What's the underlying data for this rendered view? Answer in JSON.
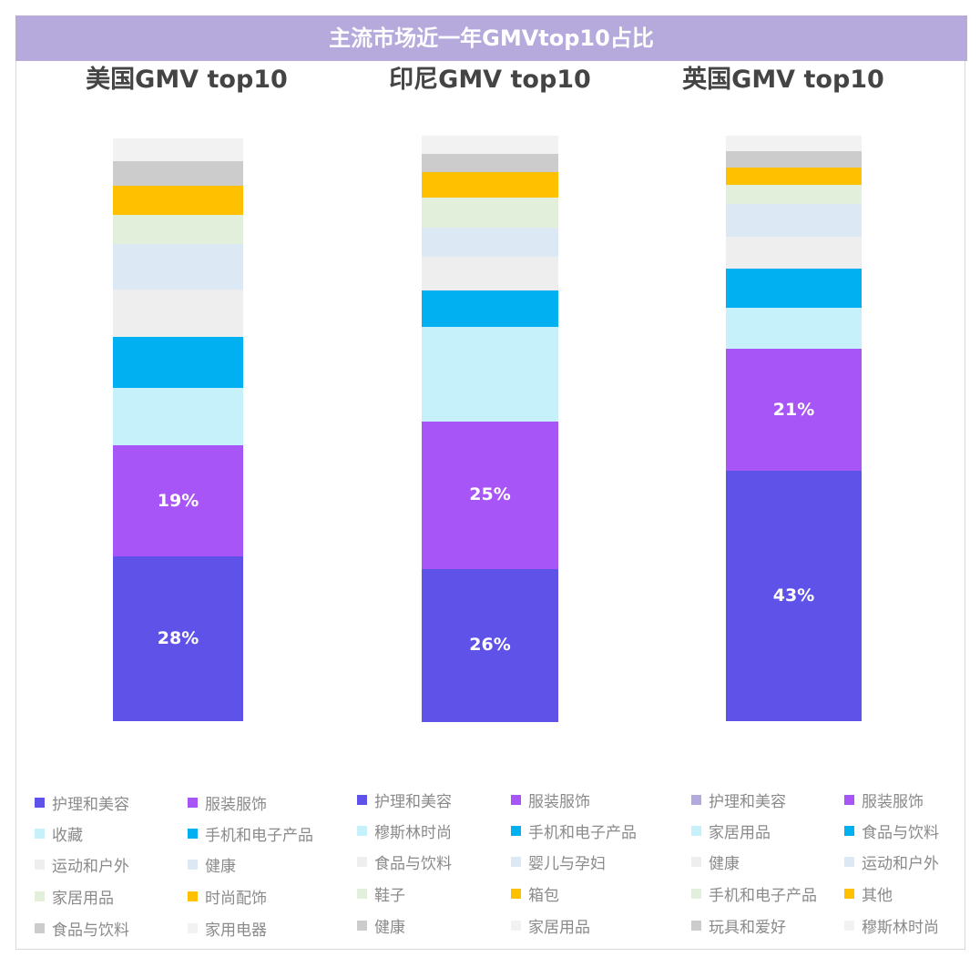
{
  "title": "主流市场近一年GMVtop10占比",
  "chart_data": [
    {
      "type": "stacked-bar",
      "title": "美国GMV top10",
      "unit": "%",
      "series": [
        {
          "name": "护理和美容",
          "value": 28,
          "label": "28%",
          "color": "#5f52e8"
        },
        {
          "name": "服装服饰",
          "value": 19,
          "label": "19%",
          "color": "#a855f7"
        },
        {
          "name": "收藏",
          "value": 9.8,
          "color": "#c6f1fb"
        },
        {
          "name": "手机和电子产品",
          "value": 8.6,
          "color": "#00b0f0"
        },
        {
          "name": "运动和户外",
          "value": 8.1,
          "color": "#eeeeee"
        },
        {
          "name": "健康",
          "value": 7.7,
          "color": "#dde8f5"
        },
        {
          "name": "家居用品",
          "value": 5.0,
          "color": "#e2efda"
        },
        {
          "name": "时尚配饰",
          "value": 5.0,
          "color": "#ffc000"
        },
        {
          "name": "食品与饮料",
          "value": 4.2,
          "color": "#cccccc"
        },
        {
          "name": "家用电器",
          "value": 3.8,
          "color": "#f2f2f2"
        }
      ]
    },
    {
      "type": "stacked-bar",
      "title": "印尼GMV top10",
      "unit": "%",
      "series": [
        {
          "name": "护理和美容",
          "value": 26,
          "label": "26%",
          "color": "#5f52e8"
        },
        {
          "name": "服装服饰",
          "value": 25,
          "label": "25%",
          "color": "#a855f7"
        },
        {
          "name": "穆斯林时尚",
          "value": 16,
          "color": "#c6f1fb"
        },
        {
          "name": "手机和电子产品",
          "value": 6.2,
          "color": "#00b0f0"
        },
        {
          "name": "食品与饮料",
          "value": 5.7,
          "color": "#eeeeee"
        },
        {
          "name": "婴儿与孕妇",
          "value": 5.0,
          "color": "#dde8f5"
        },
        {
          "name": "鞋子",
          "value": 5.1,
          "color": "#e2efda"
        },
        {
          "name": "箱包",
          "value": 4.3,
          "color": "#ffc000"
        },
        {
          "name": "健康",
          "value": 3.1,
          "color": "#cccccc"
        },
        {
          "name": "家居用品",
          "value": 3.1,
          "color": "#f2f2f2"
        }
      ]
    },
    {
      "type": "stacked-bar",
      "title": "英国GMV top10",
      "unit": "%",
      "series": [
        {
          "name": "护理和美容",
          "value": 43,
          "label": "43%",
          "color": "#5f52e8",
          "legend_color": "#b3a9de"
        },
        {
          "name": "服装服饰",
          "value": 21,
          "label": "21%",
          "color": "#a855f7"
        },
        {
          "name": "家居用品",
          "value": 7.0,
          "color": "#c6f1fb"
        },
        {
          "name": "食品与饮料",
          "value": 6.7,
          "color": "#00b0f0"
        },
        {
          "name": "健康",
          "value": 5.6,
          "color": "#eeeeee"
        },
        {
          "name": "运动和户外",
          "value": 5.6,
          "color": "#dde8f5"
        },
        {
          "name": "手机和电子产品",
          "value": 3.3,
          "color": "#e2efda"
        },
        {
          "name": "其他",
          "value": 3.0,
          "color": "#ffc000"
        },
        {
          "name": "玩具和爱好",
          "value": 2.8,
          "color": "#cccccc"
        },
        {
          "name": "穆斯林时尚",
          "value": 2.6,
          "color": "#f2f2f2"
        }
      ]
    }
  ]
}
